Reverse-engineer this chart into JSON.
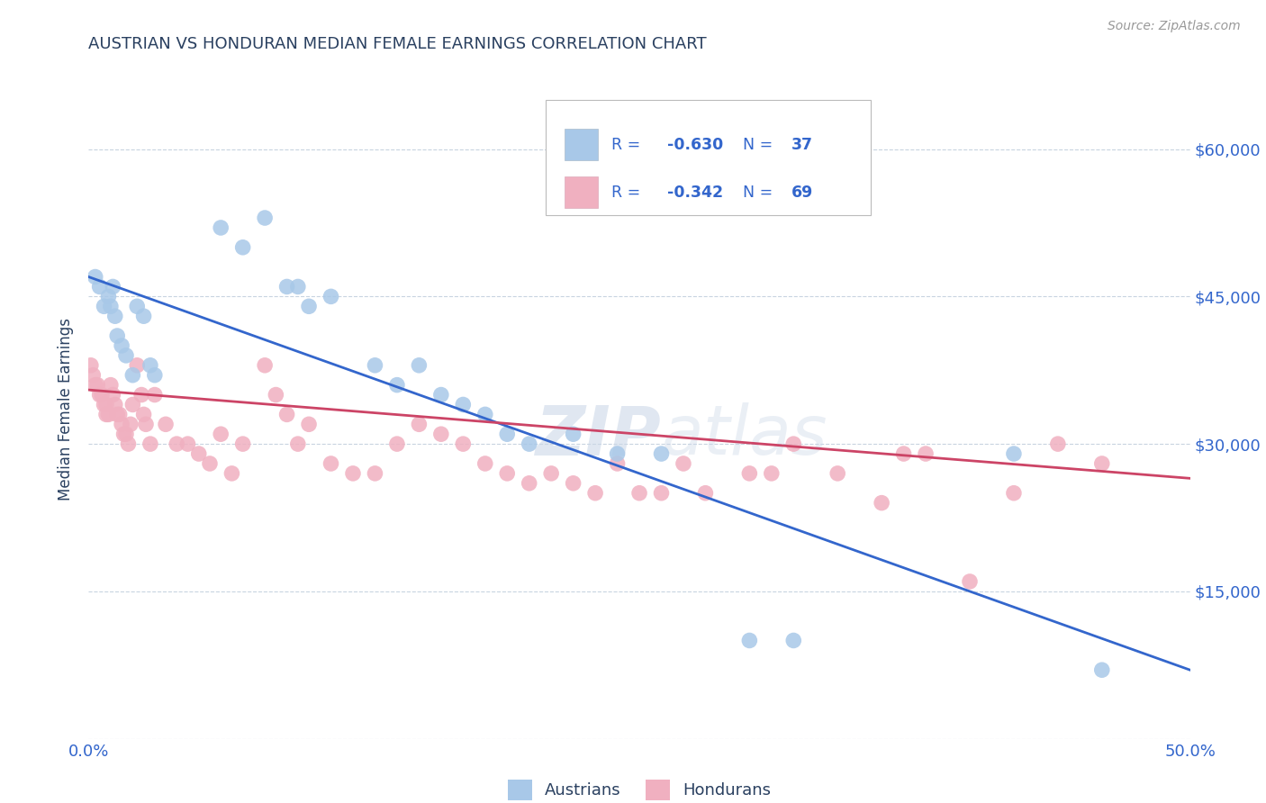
{
  "title": "AUSTRIAN VS HONDURAN MEDIAN FEMALE EARNINGS CORRELATION CHART",
  "source": "Source: ZipAtlas.com",
  "ylabel": "Median Female Earnings",
  "yticks": [
    0,
    15000,
    30000,
    45000,
    60000
  ],
  "ytick_labels": [
    "",
    "$15,000",
    "$30,000",
    "$45,000",
    "$60,000"
  ],
  "xmin": 0.0,
  "xmax": 0.5,
  "ymin": 0,
  "ymax": 67000,
  "legend_austrians": "Austrians",
  "legend_hondurans": "Hondurans",
  "legend_blue_R": "-0.630",
  "legend_blue_N": "37",
  "legend_pink_R": "-0.342",
  "legend_pink_N": "69",
  "blue_scatter_color": "#a8c8e8",
  "pink_scatter_color": "#f0b0c0",
  "blue_line_color": "#3366cc",
  "pink_line_color": "#cc4466",
  "legend_text_color": "#3366cc",
  "title_color": "#2a4060",
  "axis_label_color": "#3366cc",
  "watermark_color": "#ccd8e8",
  "background_color": "#ffffff",
  "grid_color": "#c8d4e0",
  "austrians_x": [
    0.003,
    0.005,
    0.007,
    0.009,
    0.01,
    0.011,
    0.012,
    0.013,
    0.015,
    0.017,
    0.02,
    0.022,
    0.025,
    0.028,
    0.03,
    0.06,
    0.07,
    0.08,
    0.09,
    0.095,
    0.1,
    0.11,
    0.13,
    0.14,
    0.15,
    0.16,
    0.17,
    0.18,
    0.19,
    0.2,
    0.22,
    0.24,
    0.26,
    0.3,
    0.32,
    0.42,
    0.46
  ],
  "austrians_y": [
    47000,
    46000,
    44000,
    45000,
    44000,
    46000,
    43000,
    41000,
    40000,
    39000,
    37000,
    44000,
    43000,
    38000,
    37000,
    52000,
    50000,
    53000,
    46000,
    46000,
    44000,
    45000,
    38000,
    36000,
    38000,
    35000,
    34000,
    33000,
    31000,
    30000,
    31000,
    29000,
    29000,
    10000,
    10000,
    29000,
    7000
  ],
  "hondurans_x": [
    0.001,
    0.002,
    0.003,
    0.004,
    0.005,
    0.006,
    0.007,
    0.008,
    0.008,
    0.009,
    0.01,
    0.011,
    0.012,
    0.013,
    0.014,
    0.015,
    0.016,
    0.017,
    0.018,
    0.019,
    0.02,
    0.022,
    0.024,
    0.025,
    0.026,
    0.028,
    0.03,
    0.035,
    0.04,
    0.045,
    0.05,
    0.055,
    0.06,
    0.065,
    0.07,
    0.08,
    0.085,
    0.09,
    0.095,
    0.1,
    0.11,
    0.12,
    0.13,
    0.14,
    0.15,
    0.16,
    0.17,
    0.18,
    0.19,
    0.2,
    0.21,
    0.22,
    0.23,
    0.24,
    0.25,
    0.26,
    0.27,
    0.28,
    0.3,
    0.31,
    0.32,
    0.34,
    0.36,
    0.37,
    0.38,
    0.4,
    0.42,
    0.44,
    0.46
  ],
  "hondurans_y": [
    38000,
    37000,
    36000,
    36000,
    35000,
    35000,
    34000,
    34000,
    33000,
    33000,
    36000,
    35000,
    34000,
    33000,
    33000,
    32000,
    31000,
    31000,
    30000,
    32000,
    34000,
    38000,
    35000,
    33000,
    32000,
    30000,
    35000,
    32000,
    30000,
    30000,
    29000,
    28000,
    31000,
    27000,
    30000,
    38000,
    35000,
    33000,
    30000,
    32000,
    28000,
    27000,
    27000,
    30000,
    32000,
    31000,
    30000,
    28000,
    27000,
    26000,
    27000,
    26000,
    25000,
    28000,
    25000,
    25000,
    28000,
    25000,
    27000,
    27000,
    30000,
    27000,
    24000,
    29000,
    29000,
    16000,
    25000,
    30000,
    28000
  ],
  "blue_line_x0": 0.0,
  "blue_line_x1": 0.5,
  "blue_line_y0": 47000,
  "blue_line_y1": 7000,
  "pink_line_x0": 0.0,
  "pink_line_x1": 0.5,
  "pink_line_y0": 35500,
  "pink_line_y1": 26500
}
